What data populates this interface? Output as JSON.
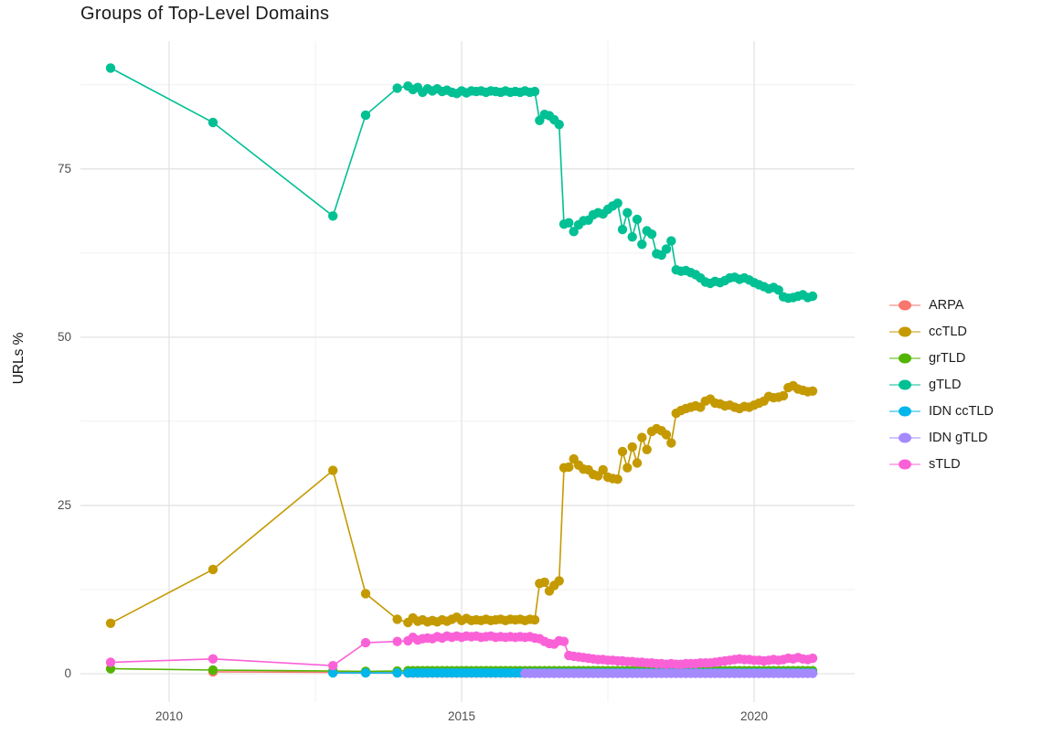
{
  "title": "Groups of Top-Level Domains",
  "chart_data": {
    "type": "line",
    "title": "Groups of Top-Level Domains",
    "xlabel": "",
    "ylabel": "URLs %",
    "x_ticks": [
      2010,
      2015,
      2020
    ],
    "y_ticks": [
      0,
      25,
      50,
      75
    ],
    "xlim": [
      2008.5,
      2021.7
    ],
    "ylim": [
      0,
      94
    ],
    "grid": true,
    "legend_position": "right",
    "monthly_start": 2014.0833,
    "monthly_count": 84,
    "series": [
      {
        "name": "ARPA",
        "color": "#F8766D",
        "points": [
          [
            2010.75,
            0.28
          ],
          [
            2012.8,
            0.2
          ],
          [
            2013.36,
            0.15
          ],
          [
            2013.9,
            0.12
          ]
        ],
        "monthly_flat": 0.1
      },
      {
        "name": "ccTLD",
        "color": "#C49A00",
        "points": [
          [
            2009,
            7.5
          ],
          [
            2010.75,
            15.5
          ],
          [
            2012.8,
            30.2
          ],
          [
            2013.36,
            11.9
          ],
          [
            2013.9,
            8.1
          ]
        ],
        "monthly_values": [
          7.6,
          8.3,
          7.8,
          8.0,
          7.7,
          7.9,
          7.7,
          8.0,
          7.8,
          8.1,
          8.4,
          7.9,
          8.2,
          7.9,
          8.0,
          7.9,
          8.1,
          7.9,
          8.0,
          8.1,
          7.9,
          8.1,
          8.0,
          8.1,
          7.9,
          8.1,
          8.0,
          13.4,
          13.6,
          12.3,
          13.1,
          13.8,
          30.6,
          30.7,
          31.9,
          31.0,
          30.4,
          30.3,
          29.6,
          29.4,
          30.3,
          29.2,
          29.0,
          28.9,
          33.0,
          30.6,
          33.7,
          31.3,
          35.1,
          33.3,
          36.0,
          36.4,
          36.1,
          35.5,
          34.3,
          38.7,
          39.1,
          39.4,
          39.6,
          39.8,
          39.6,
          40.5,
          40.8,
          40.2,
          40.1,
          39.8,
          39.9,
          39.6,
          39.4,
          39.7,
          39.6,
          39.9,
          40.2,
          40.5,
          41.2,
          41.0,
          41.1,
          41.3,
          42.5,
          42.8,
          42.3,
          42.1,
          41.9,
          42.0
        ]
      },
      {
        "name": "grTLD",
        "color": "#53B400",
        "points": [
          [
            2009,
            0.75
          ],
          [
            2010.75,
            0.55
          ],
          [
            2012.8,
            0.4
          ],
          [
            2013.36,
            0.35
          ],
          [
            2013.9,
            0.4
          ]
        ],
        "monthly_flat": 0.45
      },
      {
        "name": "gTLD",
        "color": "#00C094",
        "points": [
          [
            2009,
            90
          ],
          [
            2010.75,
            81.9
          ],
          [
            2012.8,
            68
          ],
          [
            2013.36,
            83
          ],
          [
            2013.9,
            87
          ]
        ],
        "monthly_values": [
          87.3,
          86.8,
          87.1,
          86.4,
          86.9,
          86.6,
          86.9,
          86.5,
          86.7,
          86.4,
          86.2,
          86.6,
          86.3,
          86.6,
          86.5,
          86.6,
          86.4,
          86.6,
          86.5,
          86.4,
          86.6,
          86.4,
          86.5,
          86.4,
          86.6,
          86.4,
          86.5,
          82.2,
          83.1,
          82.9,
          82.3,
          81.6,
          66.8,
          67.0,
          65.7,
          66.7,
          67.3,
          67.4,
          68.2,
          68.5,
          68.3,
          69.0,
          69.5,
          69.9,
          66.0,
          68.5,
          64.9,
          67.5,
          63.8,
          65.8,
          65.3,
          62.4,
          62.2,
          63.1,
          64.3,
          60.0,
          59.8,
          59.9,
          59.6,
          59.3,
          58.8,
          58.2,
          58.0,
          58.3,
          58.1,
          58.4,
          58.8,
          58.9,
          58.6,
          58.8,
          58.5,
          58.1,
          57.8,
          57.5,
          57.2,
          57.4,
          57.0,
          56.0,
          55.8,
          55.9,
          56.1,
          56.3,
          55.9,
          56.1
        ]
      },
      {
        "name": "IDN ccTLD",
        "color": "#00B6EB",
        "points": [
          [
            2012.8,
            0.12
          ],
          [
            2013.36,
            0.12
          ],
          [
            2013.9,
            0.12
          ]
        ],
        "monthly_flat": 0.12
      },
      {
        "name": "IDN gTLD",
        "color": "#A58AFF",
        "points": [],
        "monthly_flat": 0.06,
        "monthly_from": 2016.0
      },
      {
        "name": "sTLD",
        "color": "#FB61D7",
        "points": [
          [
            2009,
            1.7
          ],
          [
            2010.75,
            2.2
          ],
          [
            2012.8,
            1.2
          ],
          [
            2013.36,
            4.6
          ],
          [
            2013.9,
            4.8
          ]
        ],
        "monthly_values": [
          4.9,
          5.4,
          5.0,
          5.2,
          5.3,
          5.2,
          5.5,
          5.3,
          5.6,
          5.4,
          5.6,
          5.4,
          5.6,
          5.5,
          5.6,
          5.4,
          5.5,
          5.6,
          5.4,
          5.5,
          5.4,
          5.5,
          5.4,
          5.5,
          5.4,
          5.5,
          5.3,
          5.2,
          4.8,
          4.5,
          4.4,
          4.9,
          4.8,
          2.7,
          2.6,
          2.5,
          2.4,
          2.3,
          2.2,
          2.1,
          2.1,
          2.0,
          2.0,
          1.9,
          1.9,
          1.8,
          1.8,
          1.7,
          1.7,
          1.6,
          1.6,
          1.5,
          1.5,
          1.4,
          1.5,
          1.4,
          1.4,
          1.5,
          1.5,
          1.5,
          1.6,
          1.6,
          1.6,
          1.7,
          1.8,
          1.9,
          2.0,
          2.1,
          2.2,
          2.1,
          2.1,
          2.0,
          2.0,
          1.9,
          2.0,
          2.1,
          2.0,
          2.1,
          2.3,
          2.2,
          2.4,
          2.2,
          2.1,
          2.3
        ]
      }
    ]
  }
}
